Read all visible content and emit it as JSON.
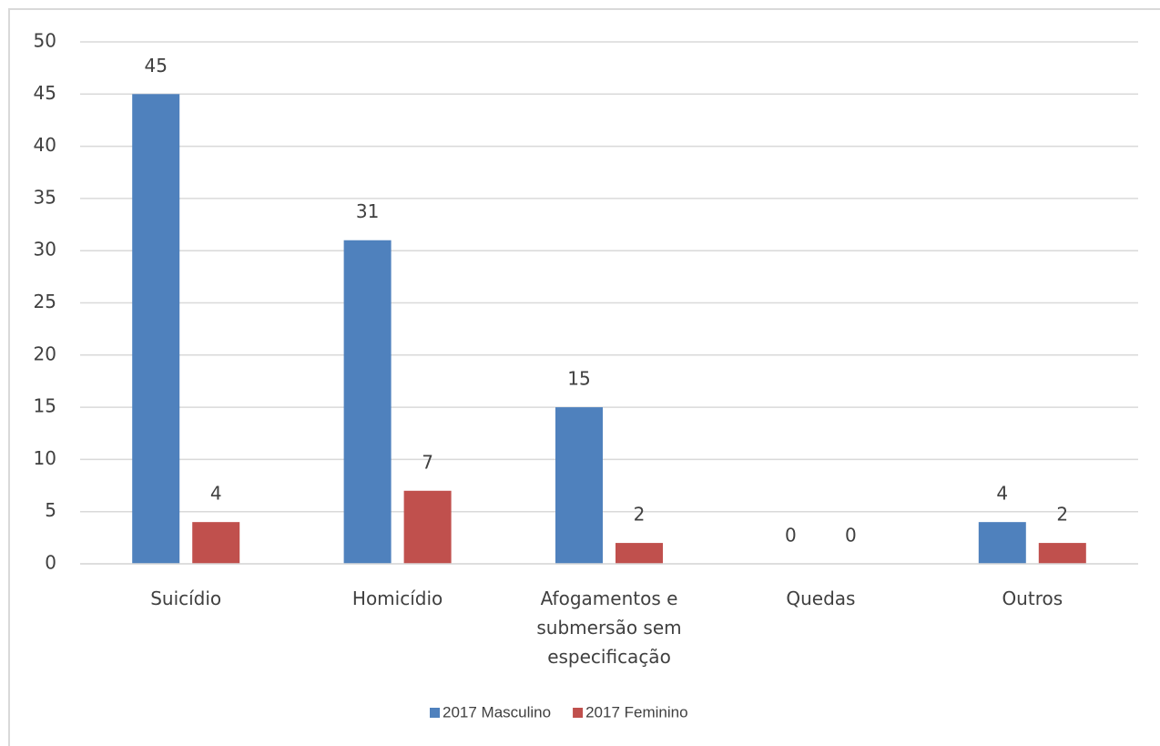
{
  "chart_data": {
    "type": "bar",
    "categories": [
      "Suicídio",
      "Homicídio",
      "Afogamentos e submersão sem especificação",
      "Quedas",
      "Outros"
    ],
    "series": [
      {
        "name": "2017 Masculino",
        "color": "#4f81bd",
        "values": [
          45,
          31,
          15,
          0,
          4
        ]
      },
      {
        "name": "2017 Feminino",
        "color": "#c0504d",
        "values": [
          4,
          7,
          2,
          0,
          2
        ]
      }
    ],
    "ylim": [
      0,
      50
    ],
    "yticks": [
      0,
      5,
      10,
      15,
      20,
      25,
      30,
      35,
      40,
      45,
      50
    ],
    "grid": true,
    "legend": "bottom"
  }
}
